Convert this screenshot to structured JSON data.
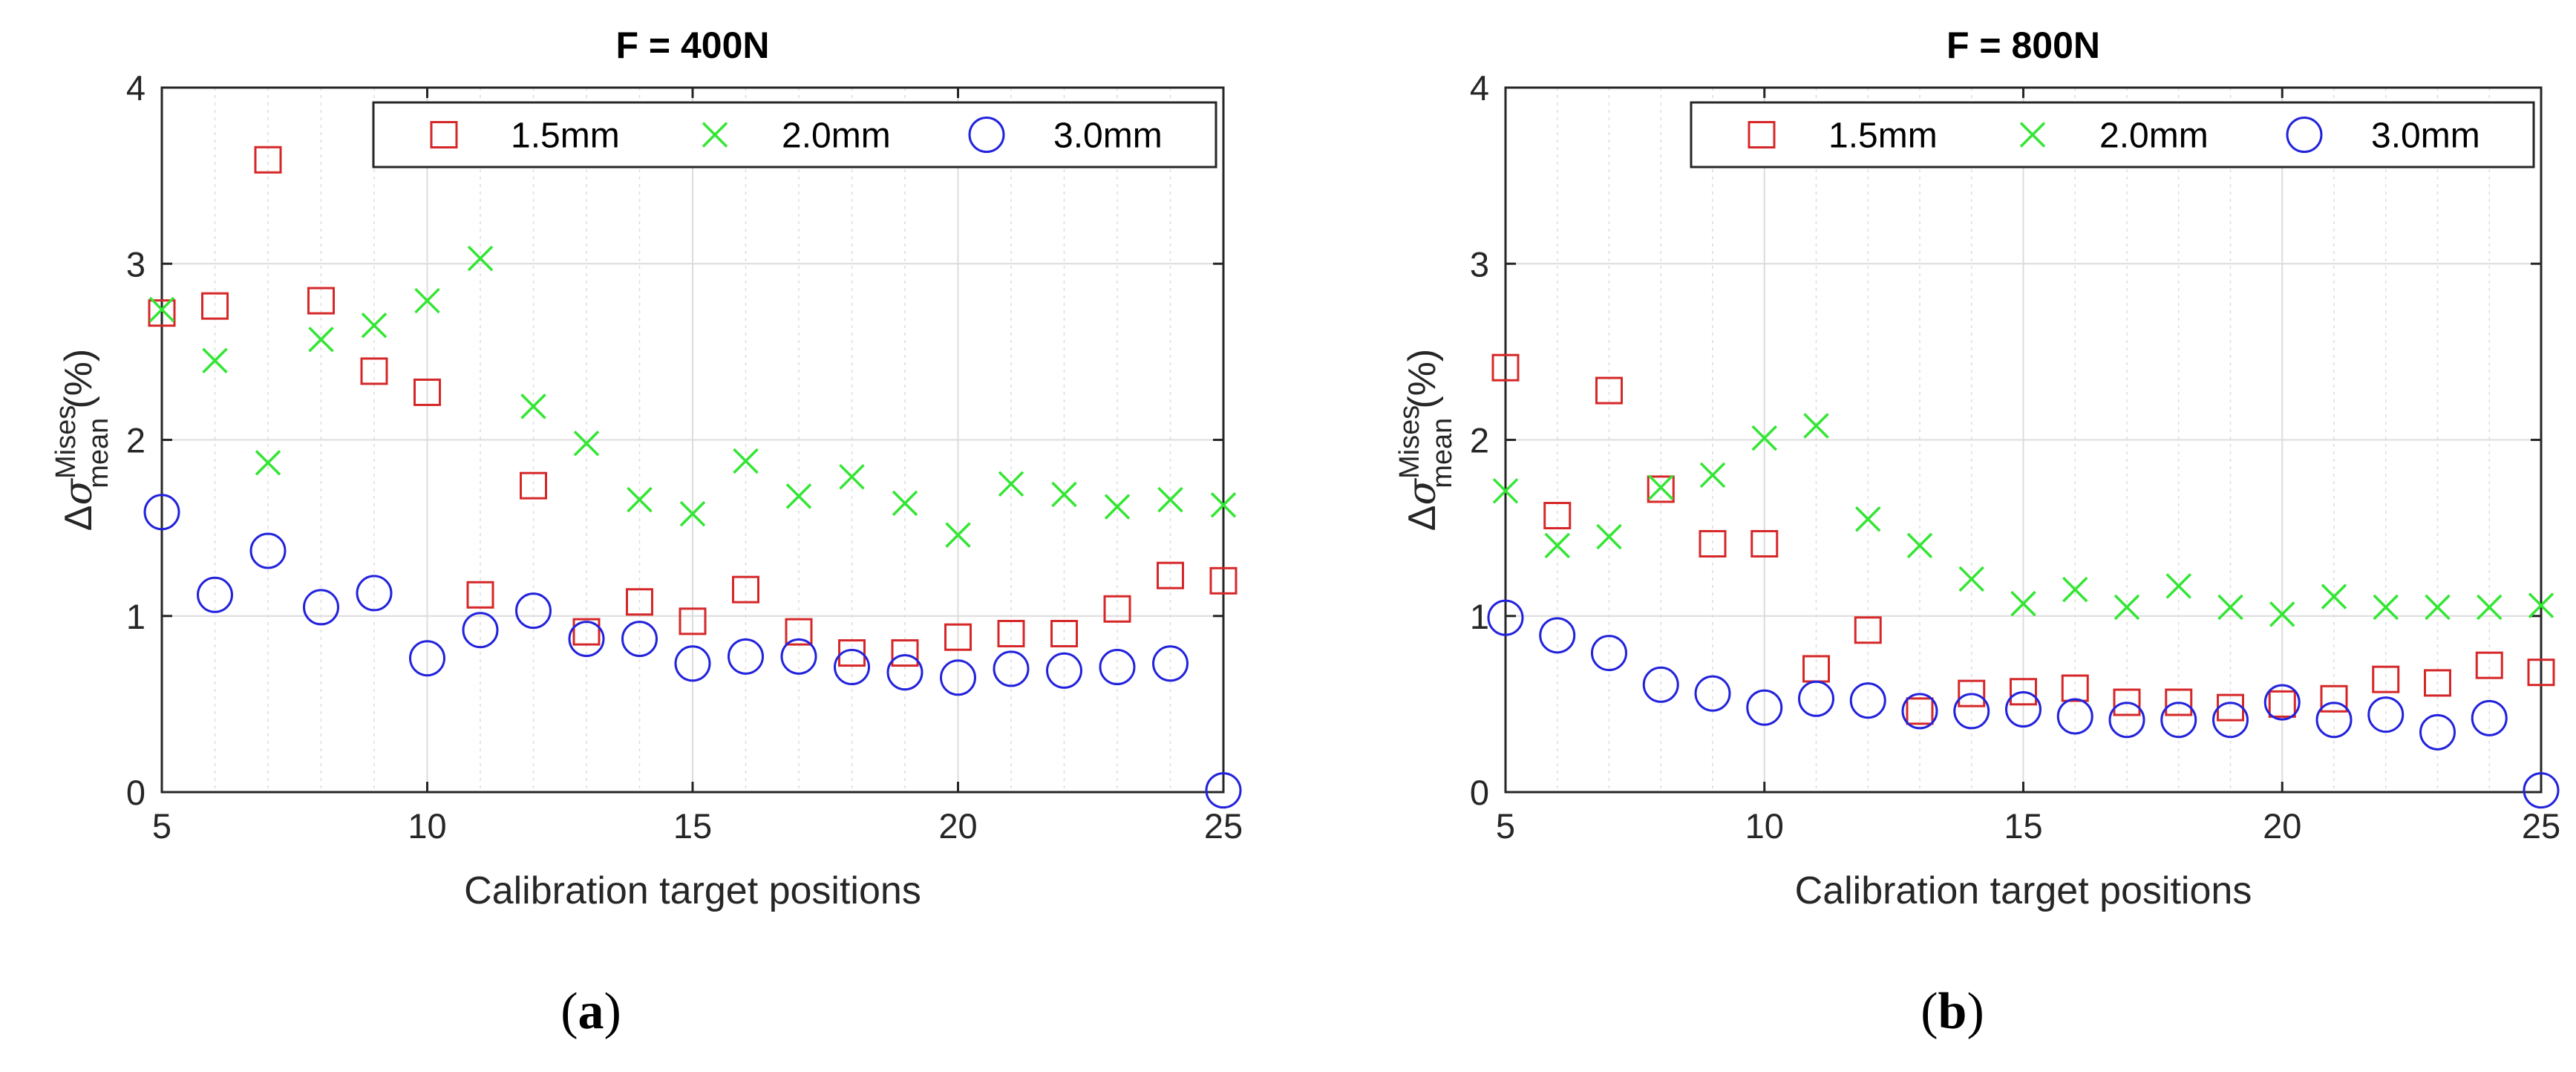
{
  "chart_data": [
    {
      "type": "scatter",
      "title": "F = 400N",
      "xlabel": "Calibration target positions",
      "ylabel": "Δσ_mean^Mises (%)",
      "ylabel_parts": {
        "delta": "Δ",
        "sigma": "σ",
        "sup": "Mises",
        "sub": "mean",
        "unit": "(%)"
      },
      "caption": {
        "open": "(",
        "letter": "a",
        "close": ")"
      },
      "xlim": [
        5,
        25
      ],
      "ylim": [
        0,
        4
      ],
      "xticks": [
        5,
        10,
        15,
        20,
        25
      ],
      "yticks": [
        0,
        1,
        2,
        3,
        4
      ],
      "grid": true,
      "legend_position": "top-right",
      "x": [
        5,
        6,
        7,
        8,
        9,
        10,
        11,
        12,
        13,
        14,
        15,
        16,
        17,
        18,
        19,
        20,
        21,
        22,
        23,
        24,
        25
      ],
      "series": [
        {
          "name": "1.5mm",
          "marker": "square",
          "color": "#d62728",
          "values": [
            2.72,
            2.76,
            3.59,
            2.79,
            2.39,
            2.27,
            1.12,
            1.74,
            0.91,
            1.08,
            0.97,
            1.15,
            0.91,
            0.79,
            0.79,
            0.88,
            0.9,
            0.9,
            1.04,
            1.23,
            1.2
          ]
        },
        {
          "name": "2.0mm",
          "marker": "x",
          "color": "#33e633",
          "values": [
            2.74,
            2.45,
            1.87,
            2.57,
            2.65,
            2.79,
            3.03,
            2.19,
            1.98,
            1.66,
            1.58,
            1.88,
            1.68,
            1.79,
            1.64,
            1.46,
            1.75,
            1.69,
            1.62,
            1.66,
            1.63
          ]
        },
        {
          "name": "3.0mm",
          "marker": "circle",
          "color": "#2222dd",
          "values": [
            1.59,
            1.12,
            1.37,
            1.05,
            1.13,
            0.76,
            0.92,
            1.03,
            0.87,
            0.87,
            0.73,
            0.77,
            0.77,
            0.71,
            0.68,
            0.65,
            0.7,
            0.69,
            0.71,
            0.73,
            0.01
          ]
        }
      ]
    },
    {
      "type": "scatter",
      "title": "F = 800N",
      "xlabel": "Calibration target positions",
      "ylabel": "Δσ_mean^Mises (%)",
      "ylabel_parts": {
        "delta": "Δ",
        "sigma": "σ",
        "sup": "Mises",
        "sub": "mean",
        "unit": "(%)"
      },
      "caption": {
        "open": "(",
        "letter": "b",
        "close": ")"
      },
      "xlim": [
        5,
        25
      ],
      "ylim": [
        0,
        4
      ],
      "xticks": [
        5,
        10,
        15,
        20,
        25
      ],
      "yticks": [
        0,
        1,
        2,
        3,
        4
      ],
      "grid": true,
      "legend_position": "top-right",
      "x": [
        5,
        6,
        7,
        8,
        9,
        10,
        11,
        12,
        13,
        14,
        15,
        16,
        17,
        18,
        19,
        20,
        21,
        22,
        23,
        24,
        25
      ],
      "series": [
        {
          "name": "1.5mm",
          "marker": "square",
          "color": "#d62728",
          "values": [
            2.41,
            1.57,
            2.28,
            1.72,
            1.41,
            1.41,
            0.7,
            0.92,
            0.46,
            0.56,
            0.57,
            0.59,
            0.51,
            0.51,
            0.48,
            0.5,
            0.53,
            0.64,
            0.62,
            0.72,
            0.68
          ]
        },
        {
          "name": "2.0mm",
          "marker": "x",
          "color": "#33e633",
          "values": [
            1.71,
            1.4,
            1.45,
            1.73,
            1.8,
            2.01,
            2.08,
            1.55,
            1.4,
            1.21,
            1.07,
            1.15,
            1.05,
            1.17,
            1.05,
            1.01,
            1.11,
            1.05,
            1.05,
            1.05,
            1.06
          ]
        },
        {
          "name": "3.0mm",
          "marker": "circle",
          "color": "#2222dd",
          "values": [
            0.99,
            0.89,
            0.79,
            0.61,
            0.56,
            0.48,
            0.53,
            0.52,
            0.46,
            0.46,
            0.47,
            0.43,
            0.41,
            0.41,
            0.41,
            0.51,
            0.41,
            0.44,
            0.34,
            0.42,
            0.01
          ]
        }
      ]
    }
  ]
}
